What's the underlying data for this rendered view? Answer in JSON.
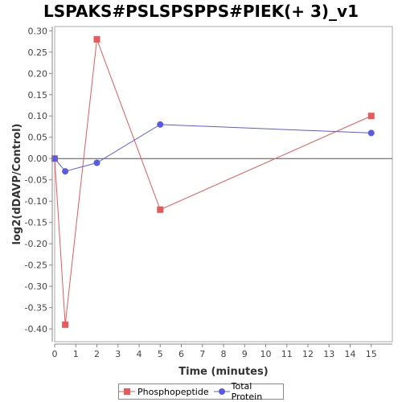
{
  "chart_data": {
    "type": "line",
    "title": "LSPAKS#PSLSPSPPS#PIEK(+ 3)_v1",
    "xlabel": "Time (minutes)",
    "ylabel": "log2(dDAVP/Control)",
    "xlim": [
      0,
      16
    ],
    "ylim": [
      -0.43,
      0.31
    ],
    "x_ticks": [
      0,
      1,
      2,
      3,
      4,
      5,
      6,
      7,
      8,
      9,
      10,
      11,
      12,
      13,
      14,
      15
    ],
    "y_ticks": [
      0.3,
      0.25,
      0.2,
      0.15,
      0.1,
      0.05,
      0.0,
      -0.05,
      -0.1,
      -0.15,
      -0.2,
      -0.25,
      -0.3,
      -0.35,
      -0.4
    ],
    "y_tick_labels": [
      "0.30",
      "0.25",
      "0.20",
      "0.15",
      "0.10",
      "0.05",
      "0.00",
      "-0.05",
      "-0.10",
      "-0.15",
      "-0.20",
      "-0.25",
      "-0.30",
      "-0.35",
      "-0.40"
    ],
    "grid": false,
    "zero_line": true,
    "legend_position": "bottom",
    "series": [
      {
        "name": "Phosphopeptide",
        "color": "#e85a5a",
        "marker": "square",
        "x": [
          0,
          0.5,
          2,
          5,
          15
        ],
        "y": [
          0.0,
          -0.39,
          0.28,
          -0.12,
          0.1
        ]
      },
      {
        "name": "Total Protein",
        "color": "#5a5ae8",
        "marker": "circle",
        "x": [
          0,
          0.5,
          2,
          5,
          15
        ],
        "y": [
          0.0,
          -0.03,
          -0.01,
          0.08,
          0.06
        ]
      }
    ]
  }
}
